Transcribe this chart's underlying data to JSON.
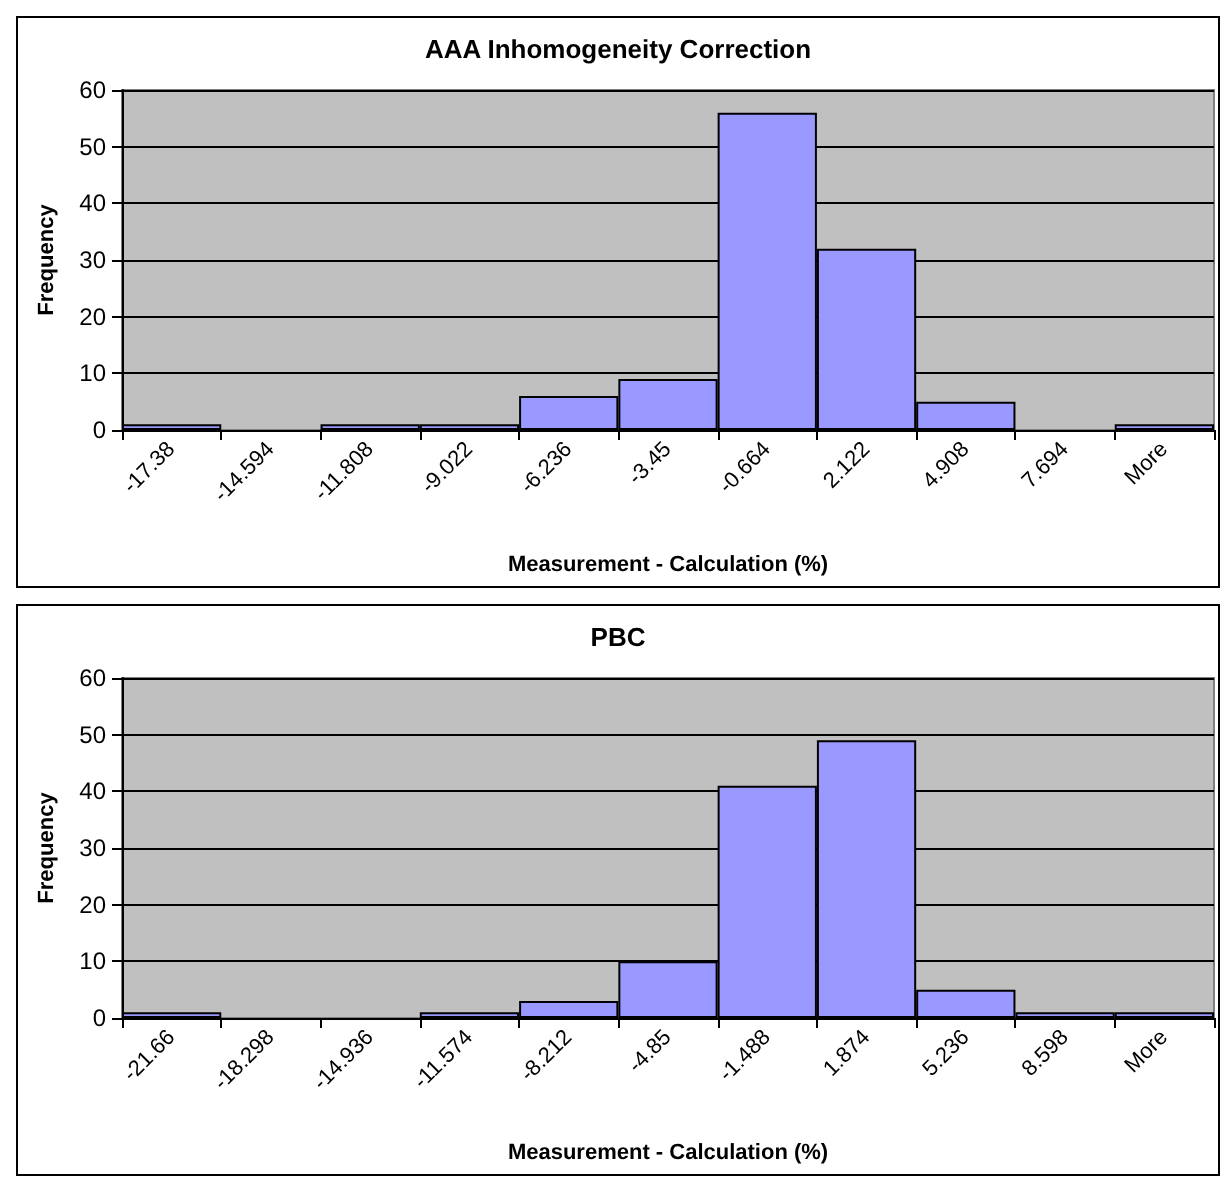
{
  "chart_data": [
    {
      "type": "bar",
      "title": "AAA Inhomogeneity Correction",
      "xlabel": "Measurement - Calculation (%)",
      "ylabel": "Frequency",
      "categories": [
        "-17.38",
        "-14.594",
        "-11.808",
        "-9.022",
        "-6.236",
        "-3.45",
        "-0.664",
        "2.122",
        "4.908",
        "7.694",
        "More"
      ],
      "series": [
        {
          "color": "#9999ff",
          "values": [
            1,
            0,
            1,
            1,
            6,
            9,
            56,
            32,
            5,
            0,
            1
          ]
        }
      ],
      "ylim": [
        0,
        60
      ],
      "yticks": [
        0,
        10,
        20,
        30,
        40,
        50,
        60
      ],
      "grid": "y"
    },
    {
      "type": "bar",
      "title": "PBC",
      "xlabel": "Measurement - Calculation (%)",
      "ylabel": "Frequency",
      "categories": [
        "-21.66",
        "-18.298",
        "-14.936",
        "-11.574",
        "-8.212",
        "-4.85",
        "-1.488",
        "1.874",
        "5.236",
        "8.598",
        "More"
      ],
      "series": [
        {
          "color": "#9999ff",
          "values": [
            1,
            0,
            0,
            1,
            3,
            10,
            41,
            49,
            5,
            1,
            1
          ]
        }
      ],
      "ylim": [
        0,
        60
      ],
      "yticks": [
        0,
        10,
        20,
        30,
        40,
        50,
        60
      ],
      "grid": "y"
    }
  ]
}
